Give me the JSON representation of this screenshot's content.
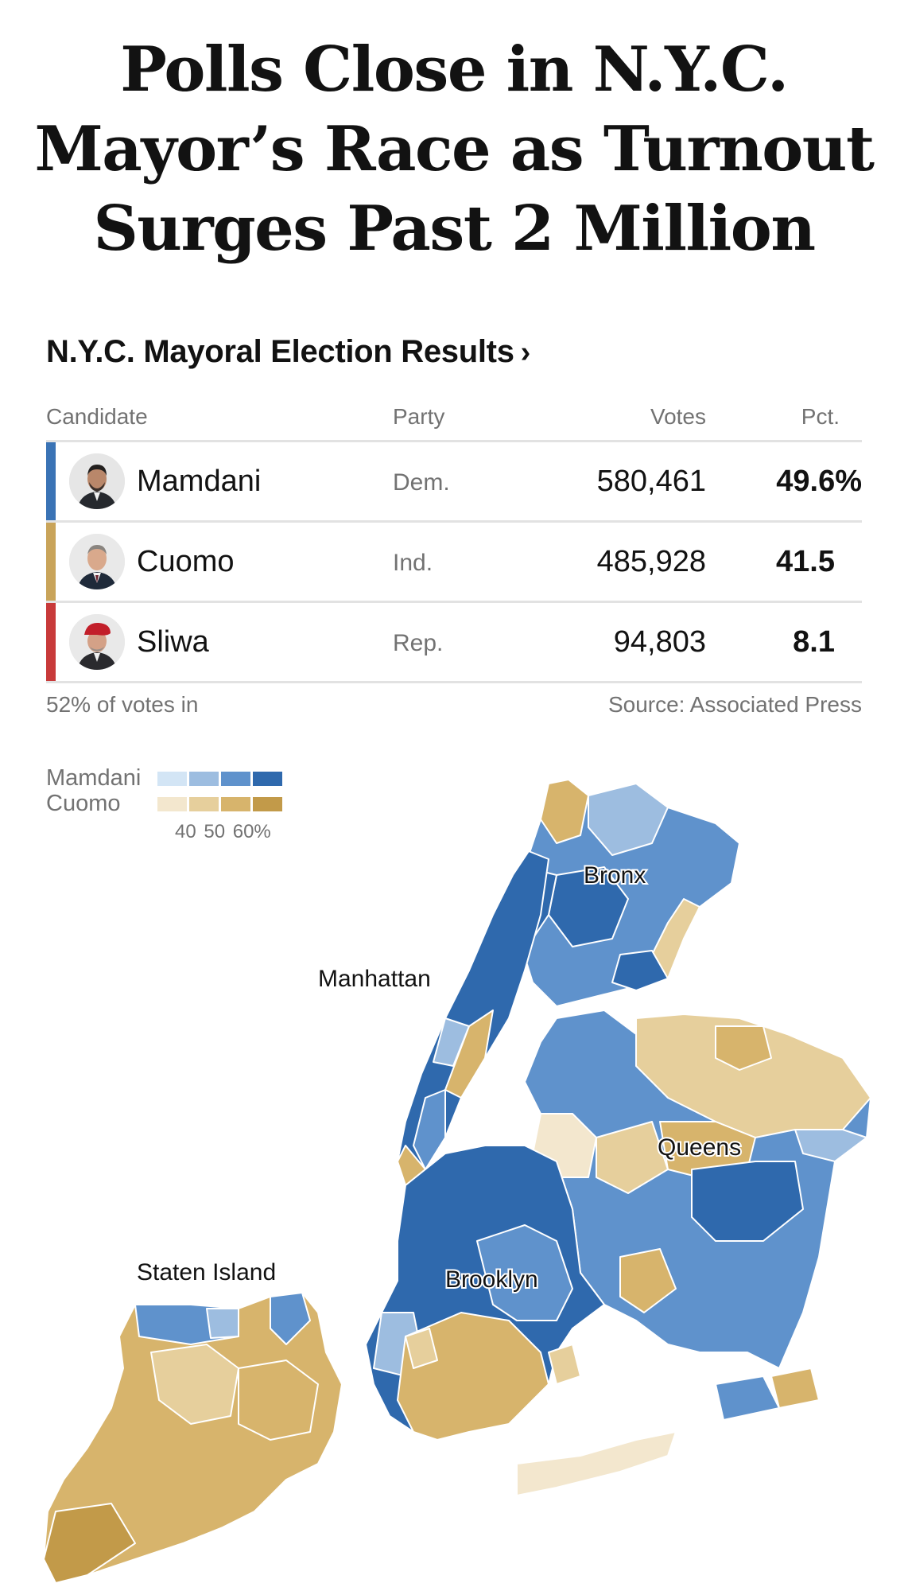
{
  "headline": "Polls Close in N.Y.C. Mayor’s Race as Turnout Surges Past 2 Million",
  "results": {
    "title": "N.Y.C. Mayoral Election Results",
    "title_chevron": "›",
    "headers": {
      "candidate": "Candidate",
      "party": "Party",
      "votes": "Votes",
      "pct": "Pct."
    },
    "rows": [
      {
        "name": "Mamdani",
        "party": "Dem.",
        "votes": "580,461",
        "pct": "49.6%",
        "color": "#3a73b5"
      },
      {
        "name": "Cuomo",
        "party": "Ind.",
        "votes": "485,928",
        "pct": "41.5",
        "color": "#c9a45a"
      },
      {
        "name": "Sliwa",
        "party": "Rep.",
        "votes": "94,803",
        "pct": "8.1",
        "color": "#c83a3a"
      }
    ],
    "reporting": "52% of votes in",
    "source": "Source: Associated Press"
  },
  "legend": {
    "mamdani_label": "Mamdani",
    "cuomo_label": "Cuomo",
    "ticks": "40 50 60%",
    "mamdani_colors": [
      "#d3e5f5",
      "#9dbde0",
      "#5f92cc",
      "#2f69ad"
    ],
    "cuomo_colors": [
      "#f3e7ce",
      "#e6cf9c",
      "#d7b46c",
      "#c29a49"
    ]
  },
  "map": {
    "labels": {
      "bronx": "Bronx",
      "manhattan": "Manhattan",
      "queens": "Queens",
      "brooklyn": "Brooklyn",
      "staten_island": "Staten Island"
    }
  }
}
